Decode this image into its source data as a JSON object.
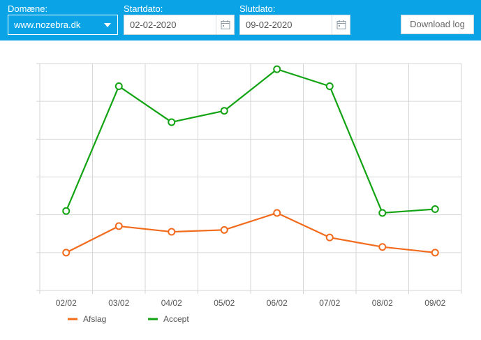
{
  "toolbar": {
    "domain_label": "Domæne:",
    "domain_value": "www.nozebra.dk",
    "start_label": "Startdato:",
    "start_value": "02-02-2020",
    "end_label": "Slutdato:",
    "end_value": "09-02-2020",
    "download_label": "Download log",
    "background_color": "#0aa4e6"
  },
  "chart_data": {
    "type": "line",
    "categories": [
      "02/02",
      "03/02",
      "04/02",
      "05/02",
      "06/02",
      "07/02",
      "08/02",
      "09/02"
    ],
    "series": [
      {
        "name": "Afslag",
        "color": "#f26b1d",
        "values": [
          0.5,
          1.2,
          1.05,
          1.1,
          1.55,
          0.9,
          0.65,
          0.5
        ]
      },
      {
        "name": "Accept",
        "color": "#12a312",
        "values": [
          1.6,
          4.9,
          3.95,
          4.25,
          5.35,
          4.9,
          1.55,
          1.65
        ]
      }
    ],
    "ylim": [
      -0.5,
      5.5
    ],
    "grid": true,
    "legend_position": "bottom-left"
  }
}
